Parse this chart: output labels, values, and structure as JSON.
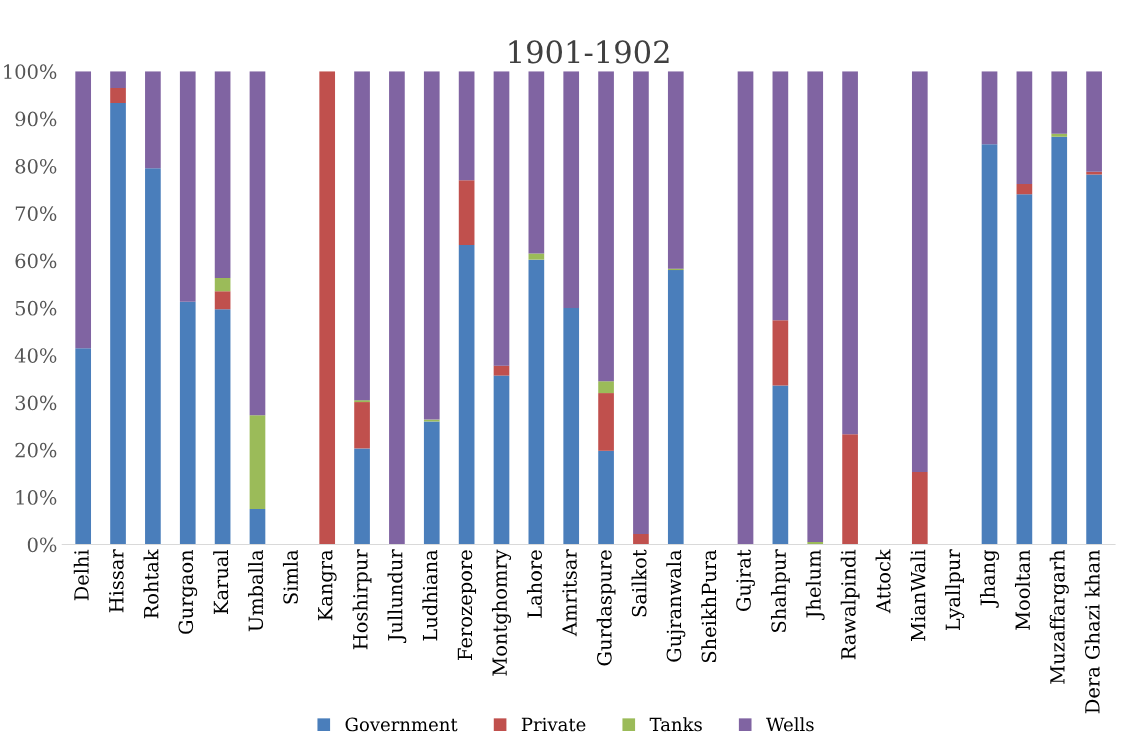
{
  "chart_data": {
    "type": "bar",
    "stacked": true,
    "title": "1901-1902",
    "categories": [
      "Delhi",
      "Hissar",
      "Rohtak",
      "Gurgaon",
      "Karual",
      "Umballa",
      "Simla",
      "Kangra",
      "Hoshirpur",
      "Jullundur",
      "Ludhiana",
      "Ferozepore",
      "Montghomry",
      "Lahore",
      "Amritsar",
      "Gurdaspure",
      "Sailkot",
      "Gujranwala",
      "SheikhPura",
      "Gujrat",
      "Shahpur",
      "Jhelum",
      "Rawalpindi",
      "Attock",
      "MianWali",
      "Lyallpur",
      "Jhang",
      "Mooltan",
      "Muzaffargarh",
      "Dera Ghazi khan"
    ],
    "series": [
      {
        "name": "Government",
        "color": "#4a7ebb",
        "values": [
          41.5,
          93.3,
          79.5,
          51.3,
          49.7,
          7.5,
          0,
          0,
          20.3,
          0,
          26,
          63.3,
          35.7,
          60.2,
          50,
          19.8,
          0,
          58,
          0,
          0,
          33.6,
          0,
          0,
          0,
          0,
          0,
          84.6,
          74,
          86.2,
          78.2
        ]
      },
      {
        "name": "Private",
        "color": "#c0504d",
        "values": [
          0,
          3.2,
          0,
          0,
          3.8,
          0,
          0,
          100,
          9.8,
          0,
          0,
          13.7,
          2.1,
          0,
          0,
          12.2,
          2.2,
          0,
          0,
          0,
          13.8,
          0,
          23.3,
          0,
          15.3,
          0,
          0,
          2.2,
          0,
          0.6
        ]
      },
      {
        "name": "Tanks",
        "color": "#9bbb59",
        "values": [
          0,
          0,
          0,
          0,
          2.8,
          19.8,
          0,
          0,
          0.4,
          0,
          0.4,
          0,
          0,
          1.3,
          0,
          2.5,
          0,
          0.3,
          0,
          0,
          0,
          0.5,
          0,
          0,
          0,
          0,
          0,
          0,
          0.6,
          0
        ]
      },
      {
        "name": "Wells",
        "color": "#8064a2",
        "values": [
          58.5,
          3.5,
          20.5,
          48.7,
          43.7,
          72.7,
          0,
          0,
          69.5,
          100,
          73.6,
          23,
          62.2,
          38.5,
          50,
          65.5,
          97.8,
          41.7,
          0,
          100,
          52.6,
          99.5,
          76.7,
          0,
          84.7,
          0,
          15.4,
          23.8,
          13.2,
          21.2
        ]
      }
    ],
    "ylim": [
      0,
      100
    ],
    "yticks": [
      {
        "value": 0,
        "label": "0%"
      },
      {
        "value": 10,
        "label": "10%"
      },
      {
        "value": 20,
        "label": "20%"
      },
      {
        "value": 30,
        "label": "30%"
      },
      {
        "value": 40,
        "label": "40%"
      },
      {
        "value": 50,
        "label": "50%"
      },
      {
        "value": 60,
        "label": "60%"
      },
      {
        "value": 70,
        "label": "70%"
      },
      {
        "value": 80,
        "label": "80%"
      },
      {
        "value": 90,
        "label": "90%"
      },
      {
        "value": 100,
        "label": "100%"
      }
    ],
    "grid": false,
    "legend": "bottom"
  }
}
